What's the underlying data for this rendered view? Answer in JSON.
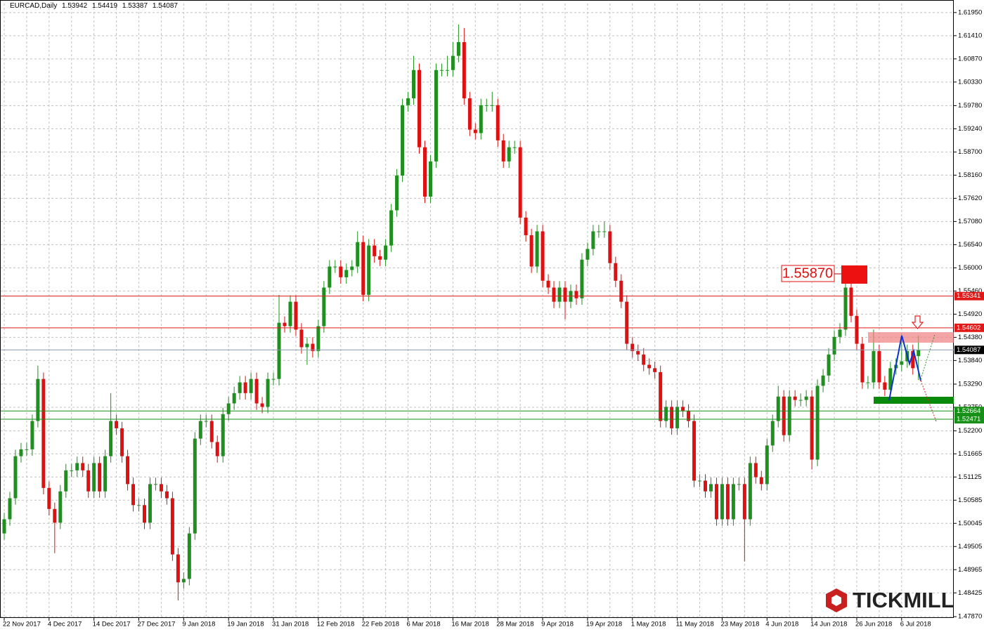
{
  "chart_data": {
    "type": "candlestick",
    "symbol": "EURCAD,Daily",
    "categories": [
      "22 Nov 2017",
      null,
      null,
      null,
      null,
      null,
      null,
      null,
      "4 Dec 2017",
      null,
      null,
      null,
      null,
      null,
      null,
      null,
      "14 Dec 2017",
      null,
      null,
      null,
      null,
      null,
      null,
      null,
      "27 Dec 2017",
      null,
      null,
      null,
      null,
      null,
      null,
      null,
      "9 Jan 2018",
      null,
      null,
      null,
      null,
      null,
      null,
      null,
      "19 Jan 2018",
      null,
      null,
      null,
      null,
      null,
      null,
      null,
      "31 Jan 2018",
      null,
      null,
      null,
      null,
      null,
      null,
      null,
      "12 Feb 2018",
      null,
      null,
      null,
      null,
      null,
      null,
      null,
      "22 Feb 2018",
      null,
      null,
      null,
      null,
      null,
      null,
      null,
      "6 Mar 2018",
      null,
      null,
      null,
      null,
      null,
      null,
      null,
      "16 Mar 2018",
      null,
      null,
      null,
      null,
      null,
      null,
      null,
      "28 Mar 2018",
      null,
      null,
      null,
      null,
      null,
      null,
      null,
      "9 Apr 2018",
      null,
      null,
      null,
      null,
      null,
      null,
      null,
      "19 Apr 2018",
      null,
      null,
      null,
      null,
      null,
      null,
      null,
      "1 May 2018",
      null,
      null,
      null,
      null,
      null,
      null,
      null,
      "11 May 2018",
      null,
      null,
      null,
      null,
      null,
      null,
      null,
      "23 May 2018",
      null,
      null,
      null,
      null,
      null,
      null,
      null,
      "4 Jun 2018",
      null,
      null,
      null,
      null,
      null,
      null,
      null,
      "14 Jun 2018",
      null,
      null,
      null,
      null,
      null,
      null,
      null,
      "26 Jun 2018",
      null,
      null,
      null,
      null,
      null,
      null,
      null,
      "6 Jul 2018",
      null,
      null,
      null
    ],
    "open": [
      1.4981,
      1.5014,
      1.5063,
      1.5161,
      1.5177,
      1.5177,
      1.5243,
      1.5341,
      1.5087,
      1.5038,
      1.5006,
      1.5079,
      1.5128,
      1.5128,
      1.5145,
      1.5128,
      1.5079,
      1.5145,
      1.5079,
      1.5161,
      1.5243,
      1.5226,
      1.5161,
      1.5096,
      1.5047,
      1.5047,
      1.5006,
      1.5096,
      1.5096,
      1.5079,
      1.5063,
      1.4932,
      1.4867,
      1.4875,
      1.4981,
      1.5202,
      1.5243,
      1.5243,
      1.5194,
      1.5161,
      1.5259,
      1.5284,
      1.5308,
      1.5333,
      1.5308,
      1.5341,
      1.5284,
      1.5276,
      1.5341,
      1.5341,
      1.5472,
      1.5464,
      1.5521,
      1.5456,
      1.5415,
      1.5423,
      1.5406,
      1.5464,
      1.5554,
      1.5603,
      1.5603,
      1.5578,
      1.5595,
      1.5603,
      1.566,
      1.5537,
      1.5652,
      1.5627,
      1.5619,
      1.5652,
      1.5734,
      1.5815,
      1.5979,
      1.5995,
      1.6061,
      1.5881,
      1.5766,
      1.5848,
      1.6061,
      1.6061,
      1.6061,
      1.6094,
      1.6126,
      1.5995,
      1.5922,
      1.5914,
      1.5979,
      1.5979,
      1.5979,
      1.5897,
      1.5848,
      1.5881,
      1.5881,
      1.5717,
      1.5676,
      1.5603,
      1.5685,
      1.557,
      1.5554,
      1.5521,
      1.5554,
      1.5521,
      1.5546,
      1.5529,
      1.5619,
      1.5644,
      1.5685,
      1.5685,
      1.5685,
      1.5611,
      1.557,
      1.5521,
      1.5423,
      1.5406,
      1.5398,
      1.5374,
      1.5366,
      1.5357,
      1.5243,
      1.5276,
      1.5226,
      1.5276,
      1.5267,
      1.5243,
      1.5104,
      1.5104,
      1.5079,
      1.5096,
      1.5014,
      1.5096,
      1.5014,
      1.5096,
      1.5096,
      1.5014,
      1.5145,
      1.5112,
      1.5096,
      1.5186,
      1.5243,
      1.53,
      1.521,
      1.53,
      1.5292,
      1.5292,
      1.53,
      1.5153,
      1.5325,
      1.5349,
      1.5398,
      1.5439,
      1.5456,
      1.5554,
      1.5488,
      1.5423,
      1.5333,
      1.5333,
      1.5406,
      1.5333,
      1.5316,
      1.5366,
      1.5374,
      1.5382,
      1.5406,
      1.53942
    ],
    "high": [
      1.5029,
      1.5078,
      1.5176,
      1.5192,
      1.5192,
      1.5258,
      1.5372,
      1.5356,
      1.5102,
      1.5053,
      1.5094,
      1.5143,
      1.5143,
      1.516,
      1.516,
      1.5143,
      1.516,
      1.516,
      1.5176,
      1.5308,
      1.5258,
      1.5241,
      1.5176,
      1.5111,
      1.5062,
      1.5062,
      1.5111,
      1.5111,
      1.5111,
      1.5094,
      1.5078,
      1.4947,
      1.489,
      1.4996,
      1.5217,
      1.5258,
      1.5258,
      1.5258,
      1.5209,
      1.5274,
      1.5299,
      1.5323,
      1.5348,
      1.5348,
      1.5356,
      1.5356,
      1.5299,
      1.5356,
      1.5356,
      1.5537,
      1.5487,
      1.5536,
      1.5536,
      1.5471,
      1.5438,
      1.5438,
      1.5479,
      1.5569,
      1.5618,
      1.5618,
      1.5618,
      1.561,
      1.5618,
      1.5685,
      1.5675,
      1.5667,
      1.5667,
      1.5642,
      1.5667,
      1.5749,
      1.583,
      1.5994,
      1.601,
      1.6094,
      1.6076,
      1.5896,
      1.5863,
      1.6076,
      1.6076,
      1.6094,
      1.6126,
      1.6167,
      1.6159,
      1.601,
      1.5937,
      1.5994,
      1.5994,
      1.601,
      1.5994,
      1.5912,
      1.5896,
      1.5896,
      1.5896,
      1.5732,
      1.5691,
      1.57,
      1.57,
      1.5585,
      1.5569,
      1.5569,
      1.5569,
      1.5561,
      1.5561,
      1.5634,
      1.5659,
      1.57,
      1.57,
      1.5708,
      1.57,
      1.5626,
      1.5585,
      1.5536,
      1.5438,
      1.5421,
      1.5413,
      1.5389,
      1.5381,
      1.5372,
      1.5291,
      1.5291,
      1.5291,
      1.5291,
      1.5282,
      1.5258,
      1.5119,
      1.5119,
      1.5111,
      1.5111,
      1.5111,
      1.5111,
      1.5111,
      1.5111,
      1.5111,
      1.516,
      1.516,
      1.5127,
      1.5201,
      1.5258,
      1.5325,
      1.5315,
      1.5315,
      1.5315,
      1.5307,
      1.5315,
      1.5315,
      1.534,
      1.5364,
      1.5413,
      1.5454,
      1.5471,
      1.5603,
      1.5603,
      1.5503,
      1.5438,
      1.5348,
      1.5456,
      1.5421,
      1.5348,
      1.5381,
      1.5389,
      1.5446,
      1.5421,
      1.5421,
      1.54419
    ],
    "low": [
      1.4966,
      1.4999,
      1.5048,
      1.5146,
      1.5162,
      1.5162,
      1.5228,
      1.5072,
      1.5023,
      1.4935,
      1.4991,
      1.5064,
      1.5113,
      1.5113,
      1.5113,
      1.5064,
      1.5064,
      1.5064,
      1.5064,
      1.5146,
      1.5211,
      1.5146,
      1.5081,
      1.5032,
      1.5032,
      1.4991,
      1.4991,
      1.5081,
      1.5064,
      1.5048,
      1.4917,
      1.4825,
      1.4852,
      1.486,
      1.4966,
      1.5187,
      1.5228,
      1.5179,
      1.5146,
      1.5146,
      1.5244,
      1.5269,
      1.5293,
      1.5293,
      1.5293,
      1.5269,
      1.5261,
      1.5261,
      1.5326,
      1.5326,
      1.5449,
      1.5449,
      1.5441,
      1.54,
      1.5374,
      1.5391,
      1.5391,
      1.5449,
      1.5539,
      1.5588,
      1.5563,
      1.5563,
      1.558,
      1.5588,
      1.5522,
      1.5522,
      1.5612,
      1.5604,
      1.5604,
      1.5637,
      1.5719,
      1.58,
      1.5964,
      1.598,
      1.5866,
      1.5751,
      1.5751,
      1.5833,
      1.6046,
      1.6046,
      1.6046,
      1.6079,
      1.598,
      1.5907,
      1.5899,
      1.5899,
      1.5964,
      1.5964,
      1.5882,
      1.5833,
      1.5833,
      1.5866,
      1.5702,
      1.5661,
      1.5588,
      1.5588,
      1.5555,
      1.5539,
      1.5506,
      1.5506,
      1.548,
      1.5506,
      1.5514,
      1.5514,
      1.5604,
      1.5629,
      1.567,
      1.567,
      1.5596,
      1.5555,
      1.5506,
      1.5408,
      1.5391,
      1.5383,
      1.5359,
      1.5351,
      1.5342,
      1.5228,
      1.5228,
      1.5211,
      1.5211,
      1.5252,
      1.5228,
      1.5089,
      1.5089,
      1.5064,
      1.5064,
      1.4999,
      1.4999,
      1.4999,
      1.4999,
      1.5081,
      1.4916,
      1.4999,
      1.5097,
      1.5081,
      1.5081,
      1.5171,
      1.5228,
      1.5195,
      1.5195,
      1.5277,
      1.5277,
      1.5277,
      1.513,
      1.5138,
      1.531,
      1.5334,
      1.5383,
      1.5424,
      1.5441,
      1.5473,
      1.5408,
      1.5318,
      1.5318,
      1.5318,
      1.5318,
      1.5301,
      1.5301,
      1.5351,
      1.5359,
      1.5367,
      1.5351,
      1.53387
    ],
    "close": [
      1.5014,
      1.5063,
      1.5161,
      1.5177,
      1.5177,
      1.5243,
      1.5341,
      1.5087,
      1.5038,
      1.5006,
      1.5079,
      1.5128,
      1.5128,
      1.5145,
      1.5128,
      1.5079,
      1.5145,
      1.5079,
      1.5161,
      1.5243,
      1.5226,
      1.5161,
      1.5096,
      1.5047,
      1.5047,
      1.5006,
      1.5096,
      1.5096,
      1.5079,
      1.5063,
      1.4932,
      1.4867,
      1.4875,
      1.4981,
      1.5202,
      1.5243,
      1.5243,
      1.5194,
      1.5161,
      1.5259,
      1.5284,
      1.5308,
      1.5333,
      1.5308,
      1.5341,
      1.5284,
      1.5276,
      1.5341,
      1.5341,
      1.5472,
      1.5464,
      1.5521,
      1.5456,
      1.5415,
      1.5423,
      1.5406,
      1.5464,
      1.5554,
      1.5603,
      1.5603,
      1.5578,
      1.5595,
      1.5603,
      1.566,
      1.5537,
      1.5652,
      1.5627,
      1.5619,
      1.5652,
      1.5734,
      1.5815,
      1.5979,
      1.5995,
      1.6061,
      1.5881,
      1.5766,
      1.5848,
      1.6061,
      1.6061,
      1.6061,
      1.6094,
      1.6126,
      1.5995,
      1.5922,
      1.5914,
      1.5979,
      1.5979,
      1.5979,
      1.5897,
      1.5848,
      1.5881,
      1.5881,
      1.5717,
      1.5676,
      1.5603,
      1.5685,
      1.557,
      1.5554,
      1.5521,
      1.5554,
      1.5521,
      1.5546,
      1.5529,
      1.5619,
      1.5644,
      1.5685,
      1.5685,
      1.5685,
      1.5611,
      1.557,
      1.5521,
      1.5423,
      1.5406,
      1.5398,
      1.5374,
      1.5366,
      1.5357,
      1.5243,
      1.5276,
      1.5226,
      1.5276,
      1.5267,
      1.5243,
      1.5104,
      1.5104,
      1.5079,
      1.5096,
      1.5014,
      1.5096,
      1.5014,
      1.5096,
      1.5096,
      1.5014,
      1.5145,
      1.5112,
      1.5096,
      1.5186,
      1.5243,
      1.53,
      1.521,
      1.53,
      1.5292,
      1.5292,
      1.53,
      1.5153,
      1.5325,
      1.5349,
      1.5398,
      1.5439,
      1.5456,
      1.5554,
      1.5488,
      1.5423,
      1.5333,
      1.5333,
      1.5406,
      1.5333,
      1.5316,
      1.5366,
      1.5374,
      1.5382,
      1.5406,
      1.5366,
      1.54087
    ],
    "ylim": [
      1.4784,
      1.6216
    ],
    "yticks": [
      {
        "value": 1.6195,
        "label": "1.61950"
      },
      {
        "value": 1.6141,
        "label": "1.61410"
      },
      {
        "value": 1.6087,
        "label": "1.60870"
      },
      {
        "value": 1.6033,
        "label": "1.60330"
      },
      {
        "value": 1.5978,
        "label": "1.59780"
      },
      {
        "value": 1.5924,
        "label": "1.59240"
      },
      {
        "value": 1.587,
        "label": "1.58700"
      },
      {
        "value": 1.5816,
        "label": "1.58160"
      },
      {
        "value": 1.5762,
        "label": "1.57620"
      },
      {
        "value": 1.5708,
        "label": "1.57080"
      },
      {
        "value": 1.5654,
        "label": "1.56540"
      },
      {
        "value": 1.56,
        "label": "1.56000"
      },
      {
        "value": 1.5546,
        "label": "1.55460"
      },
      {
        "value": 1.5492,
        "label": "1.54920"
      },
      {
        "value": 1.5438,
        "label": "1.54380"
      },
      {
        "value": 1.5384,
        "label": "1.53840"
      },
      {
        "value": 1.5329,
        "label": "1.53290"
      },
      {
        "value": 1.5275,
        "label": "1.52750"
      },
      {
        "value": 1.522,
        "label": "1.52200"
      },
      {
        "value": 1.51665,
        "label": "1.51665"
      },
      {
        "value": 1.51125,
        "label": "1.51125"
      },
      {
        "value": 1.50585,
        "label": "1.50585"
      },
      {
        "value": 1.50045,
        "label": "1.50045"
      },
      {
        "value": 1.49505,
        "label": "1.49505"
      },
      {
        "value": 1.48965,
        "label": "1.48965"
      },
      {
        "value": 1.48425,
        "label": "1.48425"
      },
      {
        "value": 1.4787,
        "label": "1.47870"
      }
    ],
    "hlines": [
      {
        "value": 1.55341,
        "color": "#e01818"
      },
      {
        "value": 1.54602,
        "color": "#e01818"
      },
      {
        "value": 1.52664,
        "color": "#169016"
      },
      {
        "value": 1.52471,
        "color": "#169016"
      }
    ],
    "up_color": "#1f8f1f",
    "down_color": "#dd1111",
    "grid": true,
    "marker_label": "1.55870",
    "logo": "TICKMILL"
  }
}
